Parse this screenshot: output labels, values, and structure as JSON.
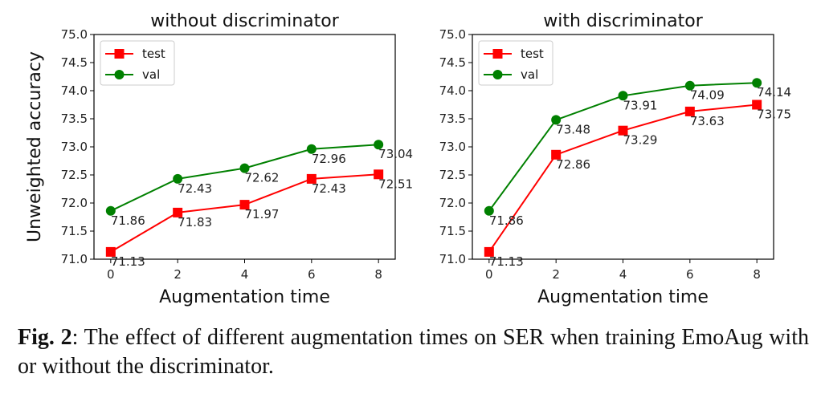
{
  "chart_data": [
    {
      "type": "line",
      "title": "without discriminator",
      "xlabel": "Augmentation time",
      "ylabel": "Unweighted accuracy",
      "x": [
        0,
        2,
        4,
        6,
        8
      ],
      "xlim": [
        -0.5,
        8.5
      ],
      "ylim": [
        71.0,
        75.0
      ],
      "xticks": [
        "0",
        "2",
        "4",
        "6",
        "8"
      ],
      "yticks": [
        "71.0",
        "71.5",
        "72.0",
        "72.5",
        "73.0",
        "73.5",
        "74.0",
        "74.5",
        "75.0"
      ],
      "grid": false,
      "legend_position": "top-left",
      "series": [
        {
          "name": "test",
          "color": "#ff0000",
          "marker": "square",
          "values": [
            71.13,
            71.83,
            71.97,
            72.43,
            72.51
          ],
          "labels": [
            "71.13",
            "71.83",
            "71.97",
            "72.43",
            "72.51"
          ]
        },
        {
          "name": "val",
          "color": "#008000",
          "marker": "circle",
          "values": [
            71.86,
            72.43,
            72.62,
            72.96,
            73.04
          ],
          "labels": [
            "71.86",
            "72.43",
            "72.62",
            "72.96",
            "73.04"
          ]
        }
      ]
    },
    {
      "type": "line",
      "title": "with discriminator",
      "xlabel": "Augmentation time",
      "ylabel": "",
      "x": [
        0,
        2,
        4,
        6,
        8
      ],
      "xlim": [
        -0.5,
        8.5
      ],
      "ylim": [
        71.0,
        75.0
      ],
      "xticks": [
        "0",
        "2",
        "4",
        "6",
        "8"
      ],
      "yticks": [
        "71.0",
        "71.5",
        "72.0",
        "72.5",
        "73.0",
        "73.5",
        "74.0",
        "74.5",
        "75.0"
      ],
      "grid": false,
      "legend_position": "top-left",
      "series": [
        {
          "name": "test",
          "color": "#ff0000",
          "marker": "square",
          "values": [
            71.13,
            72.86,
            73.29,
            73.63,
            73.75
          ],
          "labels": [
            "71.13",
            "72.86",
            "73.29",
            "73.63",
            "73.75"
          ]
        },
        {
          "name": "val",
          "color": "#008000",
          "marker": "circle",
          "values": [
            71.86,
            73.48,
            73.91,
            74.09,
            74.14
          ],
          "labels": [
            "71.86",
            "73.48",
            "73.91",
            "74.09",
            "74.14"
          ]
        }
      ]
    }
  ],
  "caption": {
    "prefix": "Fig. 2",
    "separator": ":",
    "text": " The effect of different augmentation times on SER when training EmoAug with or without the discriminator."
  }
}
